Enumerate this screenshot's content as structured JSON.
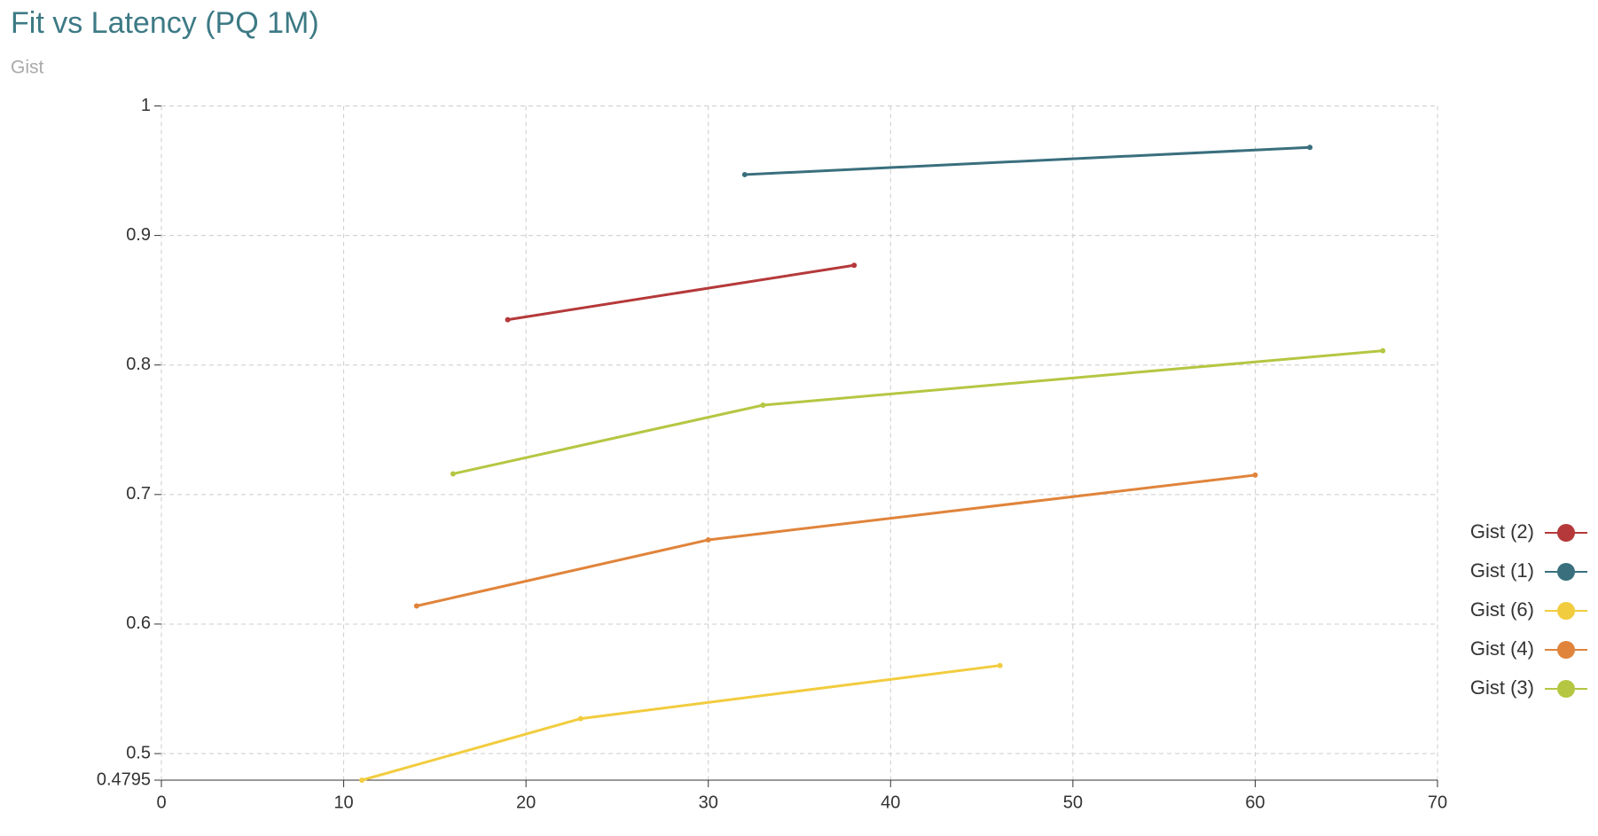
{
  "chart_data": {
    "type": "line",
    "title": "Fit vs Latency (PQ 1M)",
    "subtitle": "Gist",
    "xlim": [
      0,
      70
    ],
    "xticks": [
      0,
      10,
      20,
      30,
      40,
      50,
      60,
      70
    ],
    "ylim": [
      0.4795,
      1
    ],
    "yticks": [
      0.4795,
      0.5,
      0.6,
      0.7,
      0.8,
      0.9,
      1
    ],
    "grid": true,
    "legend": "right",
    "series": [
      {
        "name": "Gist (2)",
        "color": "#b5393a",
        "x": [
          19,
          38
        ],
        "values": [
          0.835,
          0.877
        ]
      },
      {
        "name": "Gist (1)",
        "color": "#3a6f7d",
        "x": [
          32,
          63
        ],
        "values": [
          0.947,
          0.968
        ]
      },
      {
        "name": "Gist (6)",
        "color": "#f2cc3f",
        "x": [
          11,
          23,
          46
        ],
        "values": [
          0.4795,
          0.527,
          0.568
        ]
      },
      {
        "name": "Gist (4)",
        "color": "#e0843b",
        "x": [
          14,
          30,
          60
        ],
        "values": [
          0.614,
          0.665,
          0.715
        ]
      },
      {
        "name": "Gist (3)",
        "color": "#b5c642",
        "x": [
          16,
          33,
          67
        ],
        "values": [
          0.716,
          0.769,
          0.811
        ]
      }
    ]
  }
}
